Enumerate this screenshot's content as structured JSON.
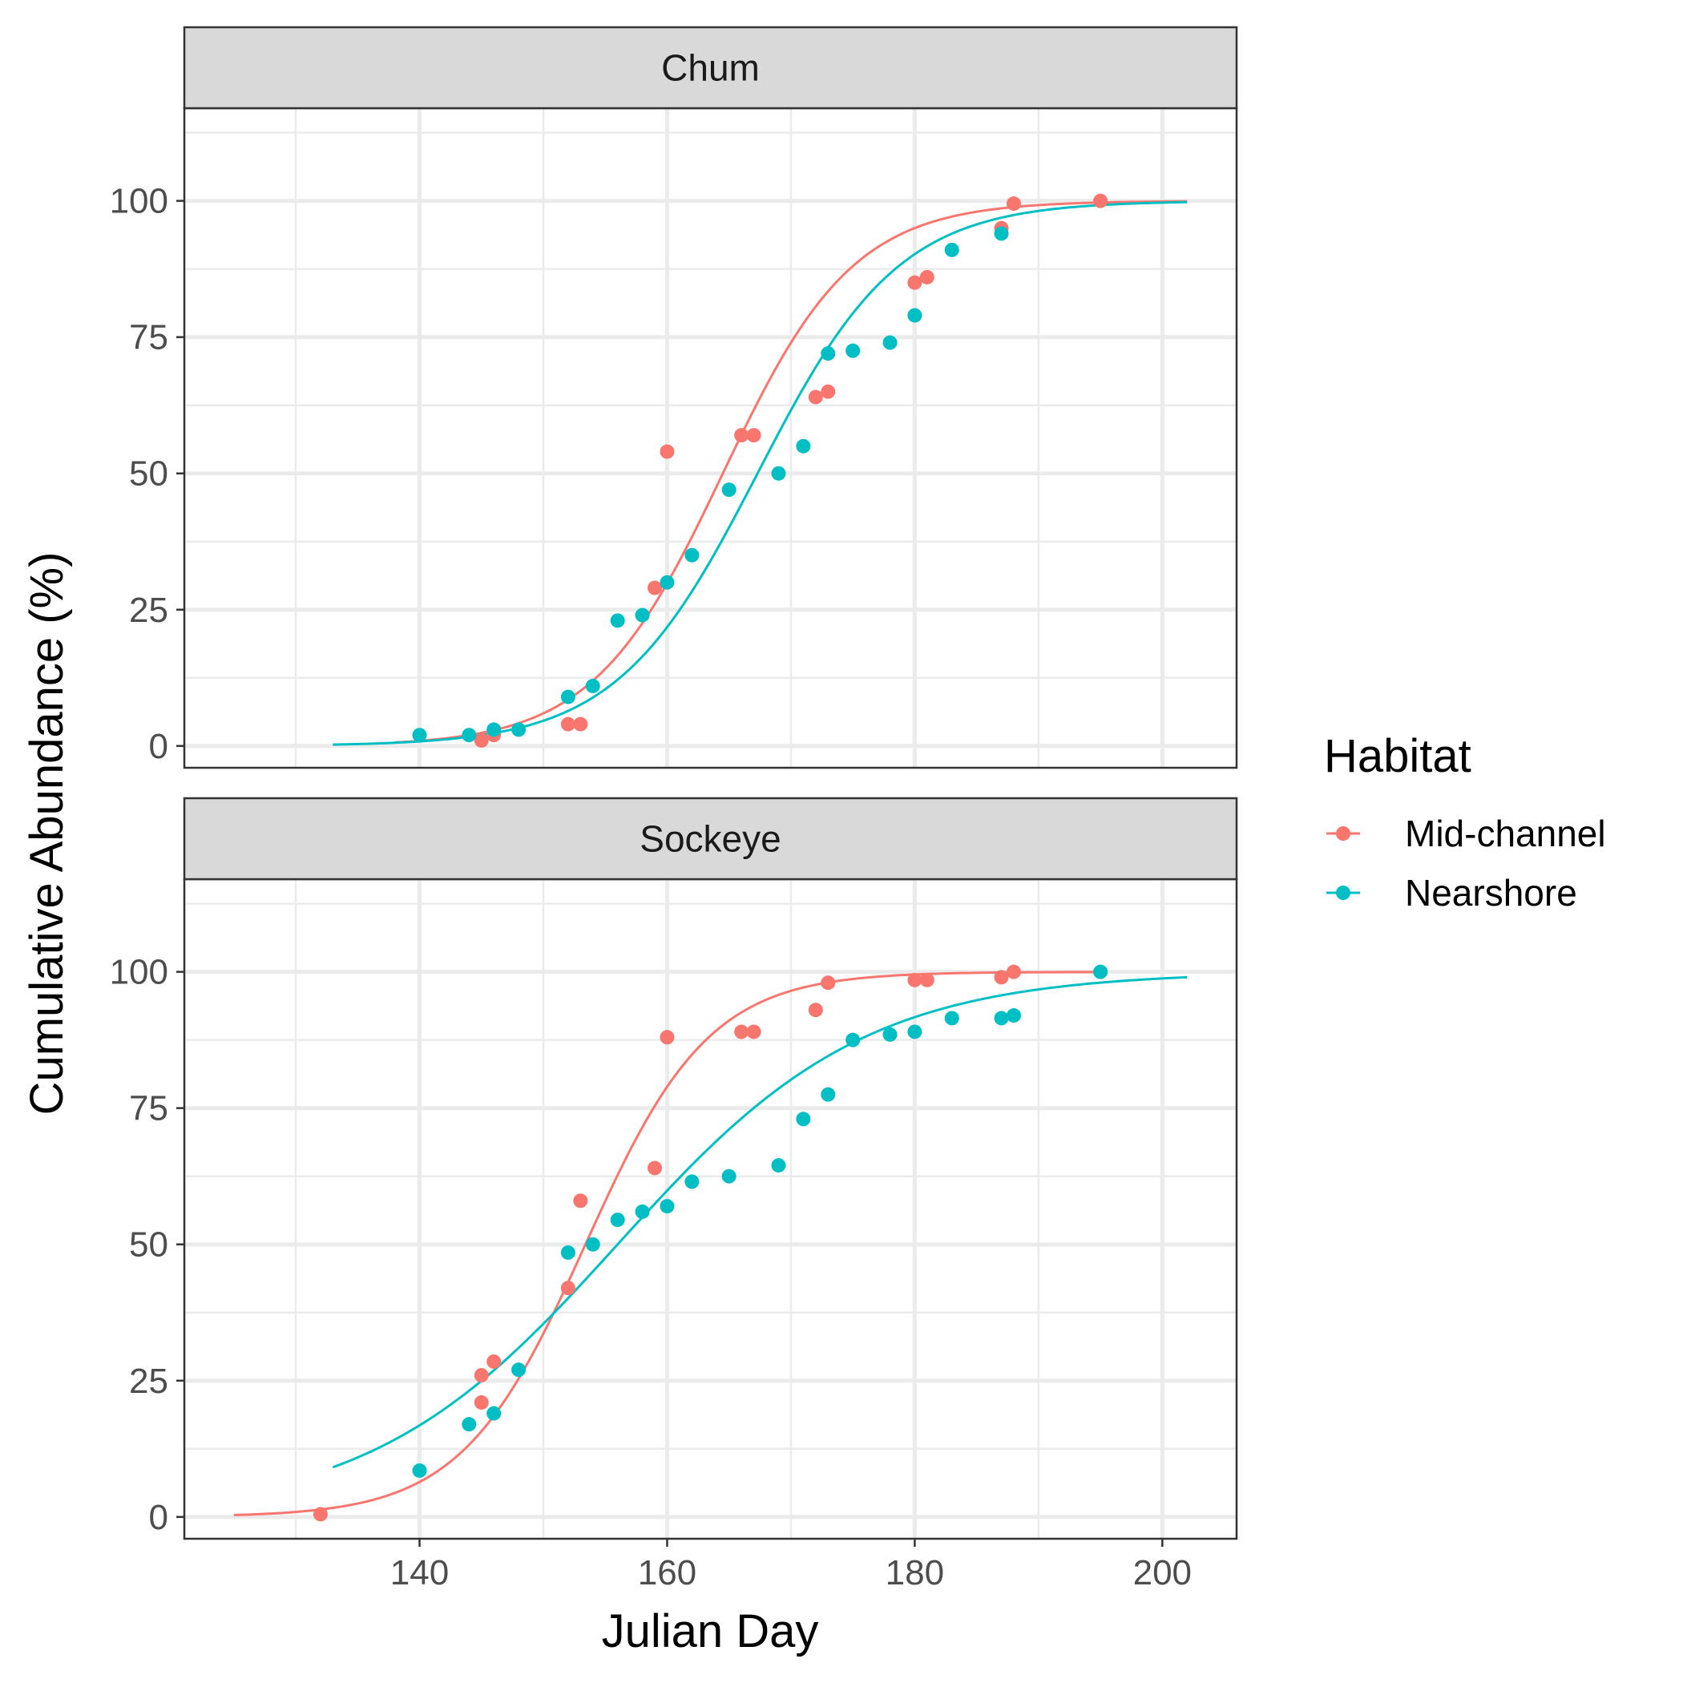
{
  "chart_data": {
    "type": "scatter",
    "xlabel": "Julian Day",
    "ylabel": "Cumulative Abundance (%)",
    "xlim": [
      121,
      206
    ],
    "ylim": [
      -4,
      117
    ],
    "x_ticks": [
      140,
      160,
      180,
      200
    ],
    "y_ticks": [
      0,
      25,
      50,
      75,
      100
    ],
    "grid": true,
    "legend": {
      "title": "Habitat",
      "position": "right",
      "entries": [
        {
          "name": "Mid-channel",
          "color": "#F8766D"
        },
        {
          "name": "Nearshore",
          "color": "#00BFC4"
        }
      ]
    },
    "panels": [
      {
        "strip": "Chum",
        "series": [
          {
            "name": "Mid-channel",
            "color": "#F8766D",
            "points": [
              [
                145,
                1
              ],
              [
                146,
                2
              ],
              [
                152,
                4
              ],
              [
                153,
                4
              ],
              [
                159,
                29
              ],
              [
                160,
                54
              ],
              [
                166,
                57
              ],
              [
                167,
                57
              ],
              [
                172,
                64
              ],
              [
                173,
                65
              ],
              [
                180,
                85
              ],
              [
                181,
                86
              ],
              [
                187,
                95
              ],
              [
                188,
                99.5
              ],
              [
                195,
                100
              ]
            ],
            "fit": {
              "x0": 164.5,
              "k": 0.19,
              "xmin": 138,
              "xmax": 202
            }
          },
          {
            "name": "Nearshore",
            "color": "#00BFC4",
            "points": [
              [
                140,
                2
              ],
              [
                144,
                2
              ],
              [
                146,
                3
              ],
              [
                148,
                3
              ],
              [
                152,
                9
              ],
              [
                154,
                11
              ],
              [
                156,
                23
              ],
              [
                158,
                24
              ],
              [
                160,
                30
              ],
              [
                162,
                35
              ],
              [
                165,
                47
              ],
              [
                169,
                50
              ],
              [
                171,
                55
              ],
              [
                173,
                72
              ],
              [
                175,
                72.5
              ],
              [
                178,
                74
              ],
              [
                180,
                79
              ],
              [
                183,
                91
              ],
              [
                187,
                94
              ]
            ],
            "fit": {
              "x0": 167.3,
              "k": 0.175,
              "xmin": 133,
              "xmax": 202
            }
          }
        ]
      },
      {
        "strip": "Sockeye",
        "series": [
          {
            "name": "Mid-channel",
            "color": "#F8766D",
            "points": [
              [
                132,
                0.5
              ],
              [
                145,
                21
              ],
              [
                145,
                26
              ],
              [
                146,
                28.5
              ],
              [
                152,
                42
              ],
              [
                153,
                58
              ],
              [
                159,
                64
              ],
              [
                160,
                88
              ],
              [
                166,
                89
              ],
              [
                167,
                89
              ],
              [
                172,
                93
              ],
              [
                173,
                98
              ],
              [
                180,
                98.5
              ],
              [
                181,
                98.5
              ],
              [
                187,
                99
              ],
              [
                188,
                100
              ]
            ],
            "fit": {
              "x0": 153.4,
              "k": 0.2,
              "xmin": 125,
              "xmax": 195
            }
          },
          {
            "name": "Nearshore",
            "color": "#00BFC4",
            "points": [
              [
                140,
                8.5
              ],
              [
                144,
                17
              ],
              [
                146,
                19
              ],
              [
                148,
                27
              ],
              [
                152,
                48.5
              ],
              [
                154,
                50
              ],
              [
                156,
                54.5
              ],
              [
                158,
                56
              ],
              [
                160,
                57
              ],
              [
                162,
                61.5
              ],
              [
                165,
                62.5
              ],
              [
                169,
                64.5
              ],
              [
                171,
                73
              ],
              [
                173,
                77.5
              ],
              [
                175,
                87.5
              ],
              [
                178,
                88.5
              ],
              [
                180,
                89
              ],
              [
                183,
                91.5
              ],
              [
                187,
                91.5
              ],
              [
                188,
                92
              ],
              [
                195,
                100
              ]
            ],
            "fit": {
              "x0": 156,
              "k": 0.1,
              "xmin": 133,
              "xmax": 202
            }
          }
        ]
      }
    ]
  }
}
